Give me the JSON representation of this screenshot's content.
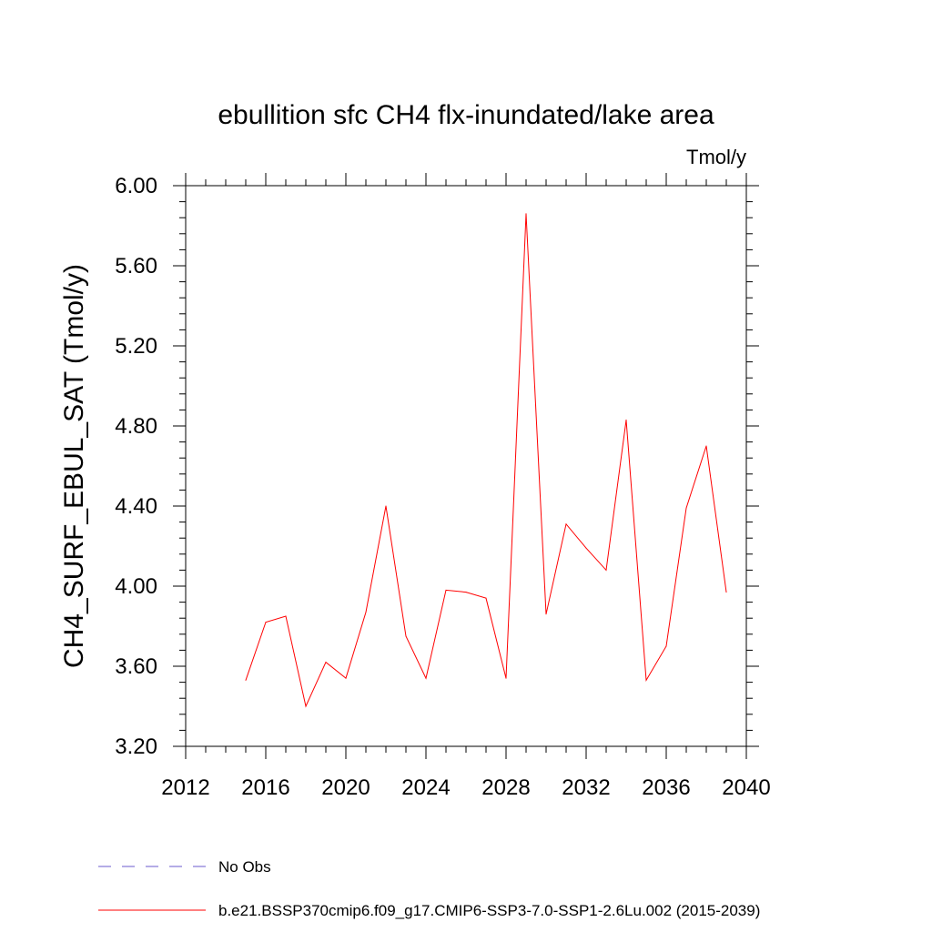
{
  "chart_data": {
    "type": "line",
    "title": "ebullition sfc CH4 flx-inundated/lake area",
    "units_label": "Tmol/y",
    "ylabel": "CH4_SURF_EBUL_SAT  (Tmol/y)",
    "xlabel": "",
    "xlim": [
      2012,
      2040
    ],
    "ylim": [
      3.2,
      6.0
    ],
    "x_ticks": [
      "2012",
      "2016",
      "2020",
      "2024",
      "2028",
      "2032",
      "2036",
      "2040"
    ],
    "y_ticks": [
      "3.20",
      "3.60",
      "4.00",
      "4.40",
      "4.80",
      "5.20",
      "5.60",
      "6.00"
    ],
    "grid": false,
    "legend_position": "bottom",
    "series": [
      {
        "name": "b.e21.BSSP370cmip6.f09_g17.CMIP6-SSP3-7.0-SSP1-2.6Lu.002 (2015-2039)",
        "color": "#ff0000",
        "style": "solid",
        "x": [
          2015,
          2016,
          2017,
          2018,
          2019,
          2020,
          2021,
          2022,
          2023,
          2024,
          2025,
          2026,
          2027,
          2028,
          2029,
          2030,
          2031,
          2032,
          2033,
          2034,
          2035,
          2036,
          2037,
          2038,
          2039
        ],
        "values": [
          3.53,
          3.82,
          3.85,
          3.4,
          3.62,
          3.54,
          3.87,
          4.4,
          3.75,
          3.54,
          3.98,
          3.97,
          3.94,
          3.54,
          5.86,
          3.86,
          4.31,
          4.19,
          4.08,
          4.83,
          3.53,
          3.7,
          4.39,
          4.7,
          3.97
        ]
      }
    ],
    "legend": [
      {
        "label": "No Obs",
        "color": "#6a5acd",
        "style": "dashed"
      },
      {
        "label": "b.e21.BSSP370cmip6.f09_g17.CMIP6-SSP3-7.0-SSP1-2.6Lu.002 (2015-2039)",
        "color": "#ff0000",
        "style": "solid"
      }
    ]
  }
}
